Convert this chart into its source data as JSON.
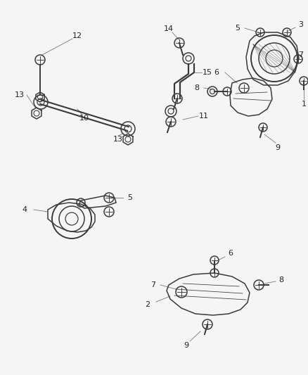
{
  "bg_color": "#f5f5f5",
  "line_color": "#3a3a3a",
  "label_color": "#222222",
  "leader_color": "#777777",
  "fig_width": 4.38,
  "fig_height": 5.33,
  "dpi": 100
}
